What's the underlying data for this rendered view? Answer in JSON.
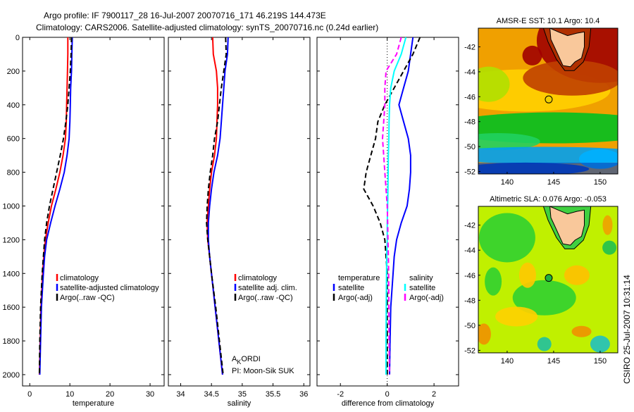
{
  "title_line1": "Argo profile: IF 7900117_28 16-Jul-2007 20070716_171 46.219S 144.473E",
  "title_line2": "Climatology: CARS2006. Satellite-adjusted climatology: synTS_20070716.nc (0.24d earlier)",
  "side_stamp": "CSIRO 25-Jul-2007 10:31:14",
  "colors": {
    "climatology": "#ff0000",
    "satellite": "#0000ff",
    "argo": "#000000",
    "sal_satellite": "#00ffff",
    "sal_argo": "#ff00ff",
    "land": "#f9c89b"
  },
  "chart_data": [
    {
      "type": "line",
      "xlabel": "temperature",
      "ylabel": "",
      "xlim": [
        -1.8,
        33.5
      ],
      "ylim": [
        2067,
        0
      ],
      "xticks": [
        0,
        10,
        20,
        30
      ],
      "yticks": [
        0,
        200,
        400,
        600,
        800,
        1000,
        1200,
        1400,
        1600,
        1800,
        2000
      ],
      "depth": [
        0,
        100,
        200,
        300,
        400,
        500,
        600,
        700,
        800,
        900,
        1000,
        1100,
        1200,
        1300,
        1400,
        1600,
        1800,
        2000
      ],
      "series": [
        {
          "name": "climatology",
          "color_key": "climatology",
          "dash": false,
          "values": [
            9.5,
            9.5,
            9.4,
            9.3,
            9.2,
            9.1,
            8.9,
            8.3,
            7.5,
            6.5,
            5.4,
            4.6,
            3.9,
            3.5,
            3.2,
            2.8,
            2.6,
            2.4
          ]
        },
        {
          "name": "satellite-adjusted climatology",
          "color_key": "satellite",
          "dash": false,
          "values": [
            10.6,
            10.5,
            10.4,
            10.2,
            10.1,
            10.0,
            9.8,
            9.3,
            8.6,
            7.5,
            6.3,
            5.2,
            4.2,
            3.7,
            3.4,
            2.9,
            2.7,
            2.5
          ]
        },
        {
          "name": "Argo(..raw -QC)",
          "color_key": "argo",
          "dash": true,
          "values": [
            10.4,
            10.3,
            10.1,
            9.8,
            9.5,
            9.0,
            8.4,
            7.6,
            6.7,
            5.8,
            4.9,
            4.2,
            3.7,
            3.4,
            3.1,
            2.7,
            2.5,
            2.4
          ]
        }
      ],
      "legend": [
        "climatology",
        "satellite-adjusted climatology",
        "Argo(..raw -QC)"
      ]
    },
    {
      "type": "line",
      "xlabel": "salinity",
      "xlim": [
        33.8,
        36.1
      ],
      "ylim": [
        2067,
        0
      ],
      "xticks": [
        34,
        34.5,
        35,
        35.5,
        36
      ],
      "depth": [
        0,
        100,
        200,
        300,
        400,
        500,
        600,
        700,
        800,
        900,
        1000,
        1100,
        1200,
        1300,
        1400,
        1600,
        1800,
        2000
      ],
      "series": [
        {
          "name": "climatology",
          "color_key": "climatology",
          "dash": false,
          "values": [
            34.52,
            34.53,
            34.58,
            34.6,
            34.6,
            34.59,
            34.58,
            34.55,
            34.5,
            34.47,
            34.45,
            34.43,
            34.44,
            34.47,
            34.5,
            34.56,
            34.62,
            34.68
          ]
        },
        {
          "name": "satellite adj. clim.",
          "color_key": "satellite",
          "dash": false,
          "values": [
            34.77,
            34.76,
            34.72,
            34.7,
            34.68,
            34.66,
            34.64,
            34.6,
            34.54,
            34.5,
            34.47,
            34.45,
            34.45,
            34.47,
            34.5,
            34.56,
            34.62,
            34.68
          ]
        },
        {
          "name": "Argo(..raw -QC)",
          "color_key": "argo",
          "dash": true,
          "values": [
            34.73,
            34.74,
            34.7,
            34.66,
            34.63,
            34.6,
            34.55,
            34.52,
            34.48,
            34.45,
            34.43,
            34.42,
            34.44,
            34.47,
            34.5,
            34.57,
            34.63,
            34.69
          ]
        }
      ],
      "legend": [
        "climatology",
        "satellite adj. clim.",
        "Argo(..raw -QC)"
      ],
      "annotation_line1": "A",
      "annotation_sub": "K",
      "annotation_line1_rest": "ORDI",
      "annotation_line2": "PI: Moon-Sik SUK"
    },
    {
      "type": "line",
      "xlabel": "difference from climatology",
      "xlim": [
        -3,
        3.05
      ],
      "ylim": [
        2067,
        0
      ],
      "xticks": [
        -2,
        0,
        2
      ],
      "depth": [
        0,
        100,
        200,
        300,
        400,
        500,
        600,
        700,
        800,
        900,
        1000,
        1100,
        1200,
        1300,
        1400,
        1600,
        1800,
        2000
      ],
      "series": [
        {
          "name": "temperature satellite",
          "color_key": "satellite",
          "dash": false,
          "values": [
            1.1,
            1.0,
            0.9,
            0.7,
            0.5,
            0.7,
            0.9,
            1.0,
            1.0,
            0.95,
            0.85,
            0.6,
            0.4,
            0.3,
            0.25,
            0.15,
            0.12,
            0.1
          ]
        },
        {
          "name": "temperature Argo(-adj)",
          "color_key": "argo",
          "dash": true,
          "values": [
            1.4,
            1.1,
            0.7,
            0.3,
            -0.1,
            -0.4,
            -0.5,
            -0.7,
            -0.9,
            -1.0,
            -0.6,
            -0.3,
            -0.1,
            -0.05,
            0.0,
            0.0,
            0.0,
            0.0
          ]
        },
        {
          "name": "salinity satellite",
          "color_key": "sal_satellite",
          "dash": false,
          "values": [
            0.8,
            0.6,
            0.3,
            0.15,
            0.1,
            0.08,
            0.07,
            0.05,
            0.04,
            0.03,
            0.02,
            0.0,
            0.0,
            -0.02,
            -0.03,
            -0.04,
            -0.05,
            -0.05
          ]
        },
        {
          "name": "salinity Argo(-adj)",
          "color_key": "sal_argo",
          "dash": true,
          "values": [
            0.6,
            0.4,
            -0.05,
            -0.1,
            -0.1,
            -0.15,
            -0.2,
            -0.15,
            -0.1,
            -0.05,
            0.0,
            0.02,
            0.03,
            0.05,
            0.06,
            0.07,
            0.08,
            0.1
          ]
        }
      ],
      "legend_headers": [
        "temperature",
        "salinity"
      ],
      "legend": [
        "satellite",
        "Argo(-adj)",
        "satellite",
        "Argo(-adj)"
      ]
    },
    {
      "type": "heatmap",
      "title": "AMSR-E SST: 10.1 Argo: 10.4",
      "xlim": [
        136.9,
        151.9
      ],
      "ylim": [
        -52.2,
        -40.5
      ],
      "xticks": [
        140,
        145,
        150
      ],
      "yticks": [
        -42,
        -44,
        -46,
        -48,
        -50,
        -52
      ],
      "argo_position": [
        144.473,
        -46.219
      ]
    },
    {
      "type": "heatmap",
      "title": "Altimetric SLA: 0.076 Argo: -0.053",
      "xlim": [
        136.9,
        151.9
      ],
      "ylim": [
        -52.2,
        -40.5
      ],
      "xticks": [
        140,
        145,
        150
      ],
      "yticks": [
        -42,
        -44,
        -46,
        -48,
        -50,
        -52
      ],
      "argo_position": [
        144.473,
        -46.219
      ]
    }
  ]
}
